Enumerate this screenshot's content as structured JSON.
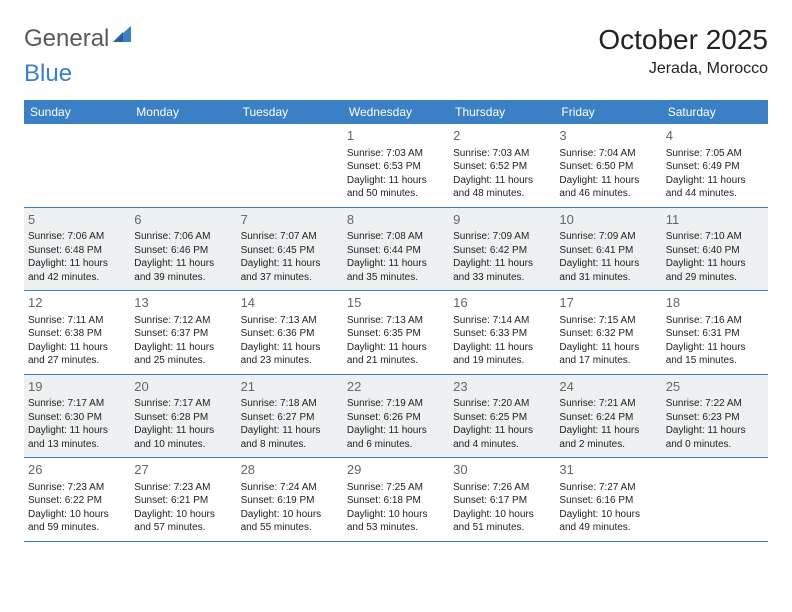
{
  "logo": {
    "first": "General",
    "second": "Blue"
  },
  "title": "October 2025",
  "location": "Jerada, Morocco",
  "day_names": [
    "Sunday",
    "Monday",
    "Tuesday",
    "Wednesday",
    "Thursday",
    "Friday",
    "Saturday"
  ],
  "colors": {
    "header_bar": "#3b7fc4",
    "alt_row": "#eef0f1",
    "border": "#3b7fc4",
    "text": "#222222",
    "daynum": "#666666",
    "logo_gray": "#5a5a5a",
    "logo_blue": "#3b7fc4",
    "background": "#ffffff"
  },
  "typography": {
    "title_fontsize": 28,
    "location_fontsize": 16,
    "dayname_fontsize": 12,
    "daynum_fontsize": 13,
    "cell_fontsize": 10
  },
  "weeks": [
    {
      "alt": false,
      "days": [
        {
          "num": "",
          "sunrise": "",
          "sunset": "",
          "daylight": ""
        },
        {
          "num": "",
          "sunrise": "",
          "sunset": "",
          "daylight": ""
        },
        {
          "num": "",
          "sunrise": "",
          "sunset": "",
          "daylight": ""
        },
        {
          "num": "1",
          "sunrise": "Sunrise: 7:03 AM",
          "sunset": "Sunset: 6:53 PM",
          "daylight": "Daylight: 11 hours and 50 minutes."
        },
        {
          "num": "2",
          "sunrise": "Sunrise: 7:03 AM",
          "sunset": "Sunset: 6:52 PM",
          "daylight": "Daylight: 11 hours and 48 minutes."
        },
        {
          "num": "3",
          "sunrise": "Sunrise: 7:04 AM",
          "sunset": "Sunset: 6:50 PM",
          "daylight": "Daylight: 11 hours and 46 minutes."
        },
        {
          "num": "4",
          "sunrise": "Sunrise: 7:05 AM",
          "sunset": "Sunset: 6:49 PM",
          "daylight": "Daylight: 11 hours and 44 minutes."
        }
      ]
    },
    {
      "alt": true,
      "days": [
        {
          "num": "5",
          "sunrise": "Sunrise: 7:06 AM",
          "sunset": "Sunset: 6:48 PM",
          "daylight": "Daylight: 11 hours and 42 minutes."
        },
        {
          "num": "6",
          "sunrise": "Sunrise: 7:06 AM",
          "sunset": "Sunset: 6:46 PM",
          "daylight": "Daylight: 11 hours and 39 minutes."
        },
        {
          "num": "7",
          "sunrise": "Sunrise: 7:07 AM",
          "sunset": "Sunset: 6:45 PM",
          "daylight": "Daylight: 11 hours and 37 minutes."
        },
        {
          "num": "8",
          "sunrise": "Sunrise: 7:08 AM",
          "sunset": "Sunset: 6:44 PM",
          "daylight": "Daylight: 11 hours and 35 minutes."
        },
        {
          "num": "9",
          "sunrise": "Sunrise: 7:09 AM",
          "sunset": "Sunset: 6:42 PM",
          "daylight": "Daylight: 11 hours and 33 minutes."
        },
        {
          "num": "10",
          "sunrise": "Sunrise: 7:09 AM",
          "sunset": "Sunset: 6:41 PM",
          "daylight": "Daylight: 11 hours and 31 minutes."
        },
        {
          "num": "11",
          "sunrise": "Sunrise: 7:10 AM",
          "sunset": "Sunset: 6:40 PM",
          "daylight": "Daylight: 11 hours and 29 minutes."
        }
      ]
    },
    {
      "alt": false,
      "days": [
        {
          "num": "12",
          "sunrise": "Sunrise: 7:11 AM",
          "sunset": "Sunset: 6:38 PM",
          "daylight": "Daylight: 11 hours and 27 minutes."
        },
        {
          "num": "13",
          "sunrise": "Sunrise: 7:12 AM",
          "sunset": "Sunset: 6:37 PM",
          "daylight": "Daylight: 11 hours and 25 minutes."
        },
        {
          "num": "14",
          "sunrise": "Sunrise: 7:13 AM",
          "sunset": "Sunset: 6:36 PM",
          "daylight": "Daylight: 11 hours and 23 minutes."
        },
        {
          "num": "15",
          "sunrise": "Sunrise: 7:13 AM",
          "sunset": "Sunset: 6:35 PM",
          "daylight": "Daylight: 11 hours and 21 minutes."
        },
        {
          "num": "16",
          "sunrise": "Sunrise: 7:14 AM",
          "sunset": "Sunset: 6:33 PM",
          "daylight": "Daylight: 11 hours and 19 minutes."
        },
        {
          "num": "17",
          "sunrise": "Sunrise: 7:15 AM",
          "sunset": "Sunset: 6:32 PM",
          "daylight": "Daylight: 11 hours and 17 minutes."
        },
        {
          "num": "18",
          "sunrise": "Sunrise: 7:16 AM",
          "sunset": "Sunset: 6:31 PM",
          "daylight": "Daylight: 11 hours and 15 minutes."
        }
      ]
    },
    {
      "alt": true,
      "days": [
        {
          "num": "19",
          "sunrise": "Sunrise: 7:17 AM",
          "sunset": "Sunset: 6:30 PM",
          "daylight": "Daylight: 11 hours and 13 minutes."
        },
        {
          "num": "20",
          "sunrise": "Sunrise: 7:17 AM",
          "sunset": "Sunset: 6:28 PM",
          "daylight": "Daylight: 11 hours and 10 minutes."
        },
        {
          "num": "21",
          "sunrise": "Sunrise: 7:18 AM",
          "sunset": "Sunset: 6:27 PM",
          "daylight": "Daylight: 11 hours and 8 minutes."
        },
        {
          "num": "22",
          "sunrise": "Sunrise: 7:19 AM",
          "sunset": "Sunset: 6:26 PM",
          "daylight": "Daylight: 11 hours and 6 minutes."
        },
        {
          "num": "23",
          "sunrise": "Sunrise: 7:20 AM",
          "sunset": "Sunset: 6:25 PM",
          "daylight": "Daylight: 11 hours and 4 minutes."
        },
        {
          "num": "24",
          "sunrise": "Sunrise: 7:21 AM",
          "sunset": "Sunset: 6:24 PM",
          "daylight": "Daylight: 11 hours and 2 minutes."
        },
        {
          "num": "25",
          "sunrise": "Sunrise: 7:22 AM",
          "sunset": "Sunset: 6:23 PM",
          "daylight": "Daylight: 11 hours and 0 minutes."
        }
      ]
    },
    {
      "alt": false,
      "days": [
        {
          "num": "26",
          "sunrise": "Sunrise: 7:23 AM",
          "sunset": "Sunset: 6:22 PM",
          "daylight": "Daylight: 10 hours and 59 minutes."
        },
        {
          "num": "27",
          "sunrise": "Sunrise: 7:23 AM",
          "sunset": "Sunset: 6:21 PM",
          "daylight": "Daylight: 10 hours and 57 minutes."
        },
        {
          "num": "28",
          "sunrise": "Sunrise: 7:24 AM",
          "sunset": "Sunset: 6:19 PM",
          "daylight": "Daylight: 10 hours and 55 minutes."
        },
        {
          "num": "29",
          "sunrise": "Sunrise: 7:25 AM",
          "sunset": "Sunset: 6:18 PM",
          "daylight": "Daylight: 10 hours and 53 minutes."
        },
        {
          "num": "30",
          "sunrise": "Sunrise: 7:26 AM",
          "sunset": "Sunset: 6:17 PM",
          "daylight": "Daylight: 10 hours and 51 minutes."
        },
        {
          "num": "31",
          "sunrise": "Sunrise: 7:27 AM",
          "sunset": "Sunset: 6:16 PM",
          "daylight": "Daylight: 10 hours and 49 minutes."
        },
        {
          "num": "",
          "sunrise": "",
          "sunset": "",
          "daylight": ""
        }
      ]
    }
  ]
}
